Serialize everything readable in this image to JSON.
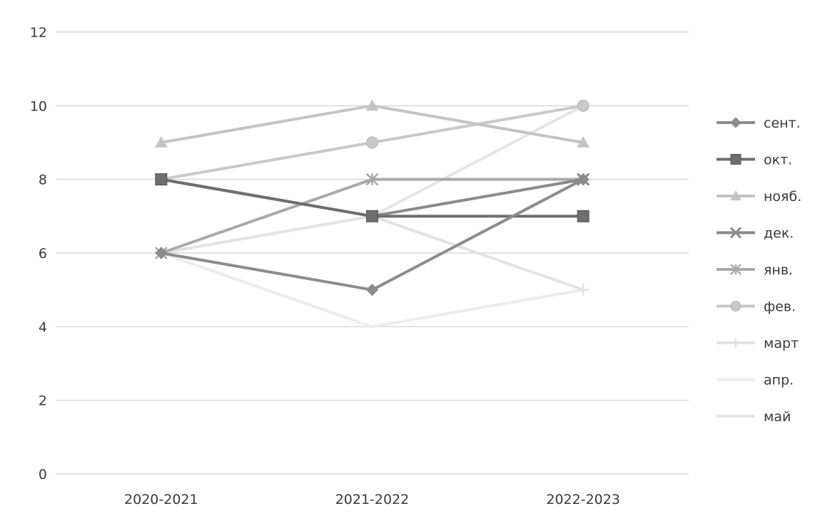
{
  "chart_data": {
    "type": "line",
    "categories": [
      "2020-2021",
      "2021-2022",
      "2022-2023"
    ],
    "ylim": [
      0,
      12
    ],
    "yticks": [
      0,
      2,
      4,
      6,
      8,
      10,
      12
    ],
    "grid": true,
    "legend_position": "right",
    "series": [
      {
        "name": "сент.",
        "values": [
          6,
          5,
          8
        ],
        "color": "#8c8c8c",
        "marker": "diamond"
      },
      {
        "name": "окт.",
        "values": [
          8,
          7,
          7
        ],
        "color": "#6e6e6e",
        "marker": "square"
      },
      {
        "name": "нояб.",
        "values": [
          9,
          10,
          9
        ],
        "color": "#c4c4c4",
        "marker": "triangle"
      },
      {
        "name": "дек.",
        "values": [
          8,
          7,
          8
        ],
        "color": "#8a8a8a",
        "marker": "x"
      },
      {
        "name": "янв.",
        "values": [
          6,
          8,
          8
        ],
        "color": "#a9a9a9",
        "marker": "star"
      },
      {
        "name": "фев.",
        "values": [
          8,
          9,
          10
        ],
        "color": "#c9c9c9",
        "marker": "circle"
      },
      {
        "name": "март",
        "values": [
          6,
          7,
          5
        ],
        "color": "#e3e3e3",
        "marker": "plus"
      },
      {
        "name": "апр.",
        "values": [
          6,
          4,
          5
        ],
        "color": "#ededed",
        "marker": "dash"
      },
      {
        "name": "май",
        "values": [
          6,
          7,
          10
        ],
        "color": "#e6e6e6",
        "marker": "dash"
      }
    ]
  }
}
